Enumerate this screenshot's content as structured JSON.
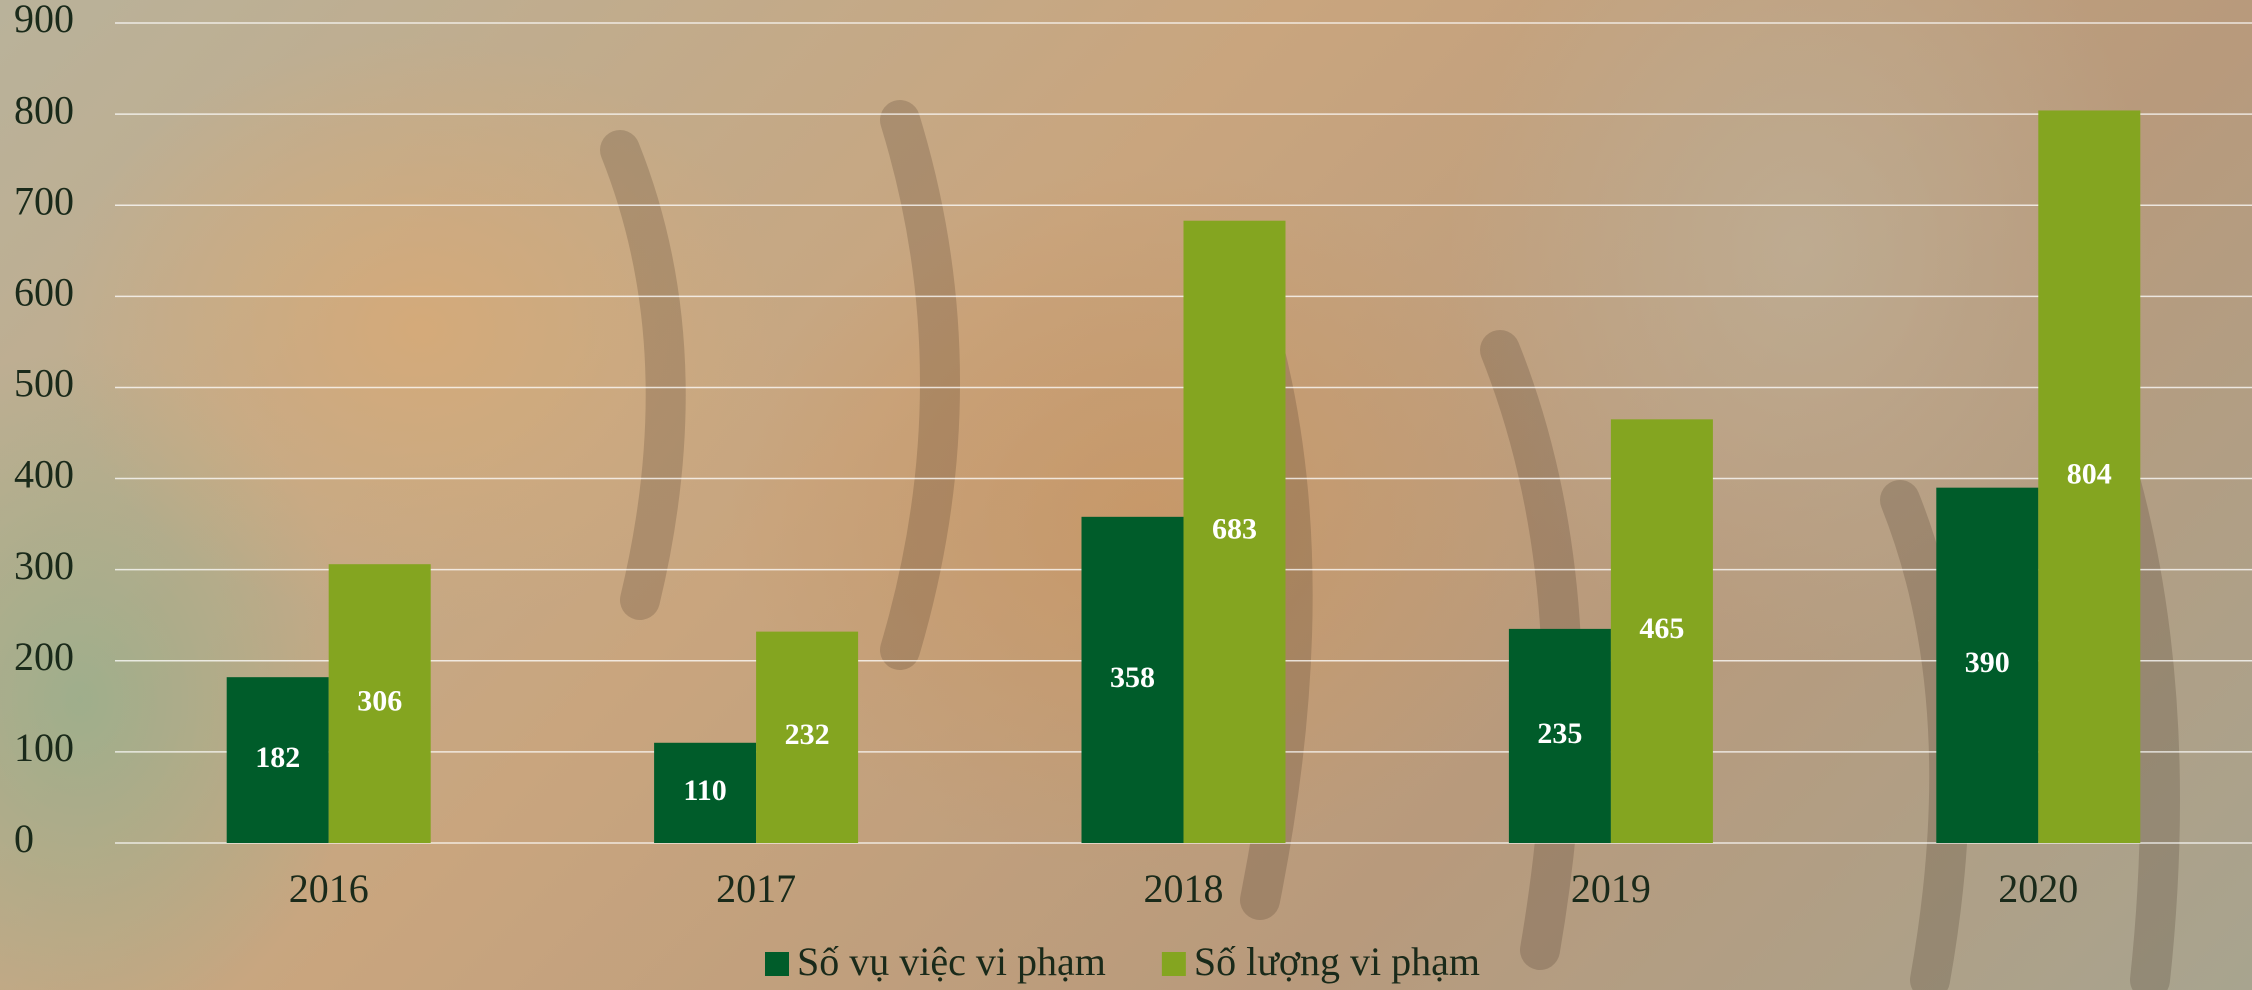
{
  "chart_data": {
    "type": "bar",
    "categories": [
      "2016",
      "2017",
      "2018",
      "2019",
      "2020"
    ],
    "series": [
      {
        "name": "Số vụ việc vi phạm",
        "color": "#005c2a",
        "values": [
          182,
          110,
          358,
          235,
          390
        ]
      },
      {
        "name": "Số lượng vi phạm",
        "color": "#84a520",
        "values": [
          306,
          232,
          683,
          465,
          804
        ]
      }
    ],
    "ylim": [
      0,
      900
    ],
    "yticks": [
      0,
      100,
      200,
      300,
      400,
      500,
      600,
      700,
      800,
      900
    ],
    "grid": true
  }
}
